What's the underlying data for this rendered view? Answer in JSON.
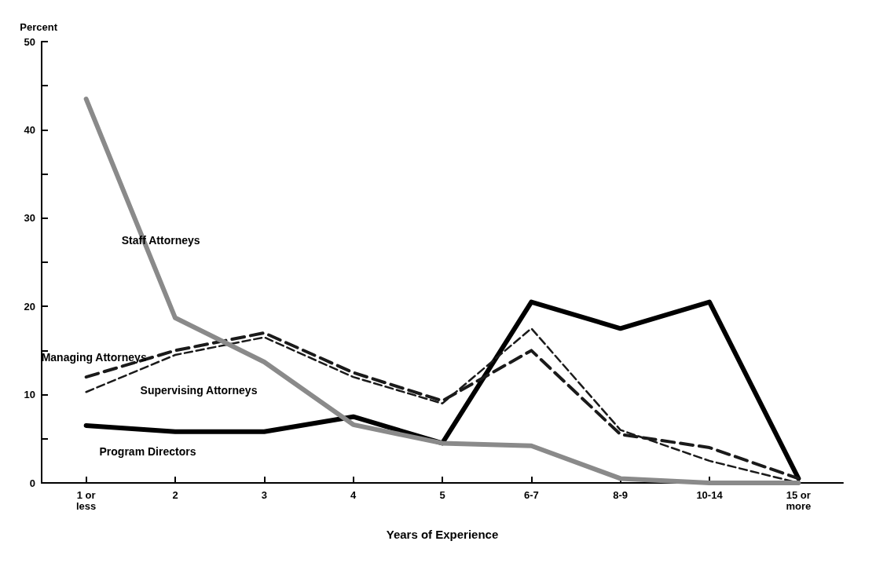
{
  "chart_data": {
    "type": "line",
    "xlabel": "Years of Experience",
    "ylabel": "Percent",
    "categories": [
      "1 or\nless",
      "2",
      "3",
      "4",
      "5",
      "6-7",
      "8-9",
      "10-14",
      "15 or\nmore"
    ],
    "ylim": [
      0,
      50
    ],
    "yticks": [
      0,
      {
        "value": 5,
        "label": null
      },
      10,
      {
        "value": 15,
        "label": null
      },
      20,
      {
        "value": 25,
        "label": null
      },
      30,
      {
        "value": 35,
        "label": null
      },
      40,
      {
        "value": 45,
        "label": null
      },
      50
    ],
    "grid": false,
    "legend": false,
    "marker": "none",
    "series": [
      {
        "name": "Staff Attorneys",
        "color": "#8a8a8a",
        "line_style": "solid",
        "values": [
          43.5,
          18.7,
          13.7,
          6.6,
          4.5,
          4.2,
          0.5,
          0,
          0
        ]
      },
      {
        "name": "Managing Attorneys",
        "color": "#1a1a1a",
        "line_style": "dashed",
        "values": [
          12,
          15,
          17,
          12.5,
          9.3,
          15,
          5.5,
          4,
          0.5
        ]
      },
      {
        "name": "Supervising Attorneys",
        "color": "#1a1a1a",
        "line_style": "dashed",
        "values": [
          10.3,
          14.5,
          16.5,
          12,
          9,
          17.5,
          6,
          2.5,
          0
        ]
      },
      {
        "name": "Program Directors",
        "color": "#000000",
        "line_style": "solid",
        "values": [
          6.5,
          5.8,
          5.8,
          7.5,
          4.5,
          20.5,
          17.5,
          20.5,
          0.5
        ]
      }
    ]
  }
}
